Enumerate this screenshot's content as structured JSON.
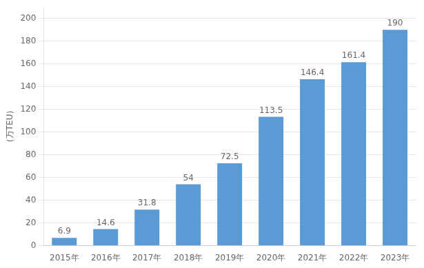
{
  "chart_data": {
    "type": "bar",
    "categories": [
      "2015年",
      "2016年",
      "2017年",
      "2018年",
      "2019年",
      "2020年",
      "2021年",
      "2022年",
      "2023年"
    ],
    "values": [
      6.9,
      14.6,
      31.8,
      54,
      72.5,
      113.5,
      146.4,
      161.4,
      190
    ],
    "color": "#5b9bd5",
    "ylabel": "（万TEU）",
    "ylim": [
      0,
      210
    ],
    "yticks": [
      0,
      20,
      40,
      60,
      80,
      100,
      120,
      140,
      160,
      180,
      200
    ],
    "grid": true,
    "data_labels": true
  }
}
